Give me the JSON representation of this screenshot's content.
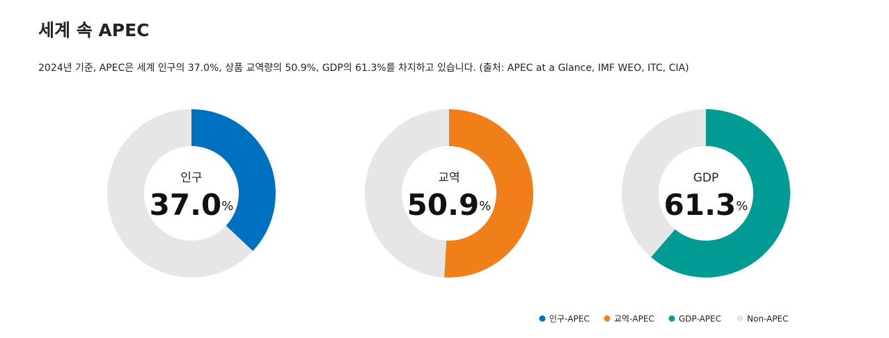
{
  "header": {
    "title": "세계 속 APEC",
    "subtitle": "2024년 기준, APEC은 세계 인구의 37.0%, 상품 교역량의 50.9%, GDP의 61.3%를 차지하고 있습니다. (출처: APEC at a Glance, IMF WEO, ITC, CIA)"
  },
  "chart_data": [
    {
      "type": "donut",
      "title": "인구",
      "categories": [
        "인구-APEC",
        "Non-APEC"
      ],
      "values": [
        37.0,
        63.0
      ],
      "value_labels": [
        "37.0",
        null
      ],
      "unit": "%",
      "colors": [
        "#0070c0",
        "#e6e6e6"
      ]
    },
    {
      "type": "donut",
      "title": "교역",
      "categories": [
        "교역-APEC",
        "Non-APEC"
      ],
      "values": [
        50.9,
        49.1
      ],
      "value_labels": [
        "50.9",
        null
      ],
      "unit": "%",
      "colors": [
        "#f07f1a",
        "#e6e6e6"
      ]
    },
    {
      "type": "donut",
      "title": "GDP",
      "categories": [
        "GDP-APEC",
        "Non-APEC"
      ],
      "values": [
        61.3,
        38.7
      ],
      "value_labels": [
        "61.3",
        null
      ],
      "unit": "%",
      "colors": [
        "#009b93",
        "#e6e6e6"
      ]
    }
  ]
}
